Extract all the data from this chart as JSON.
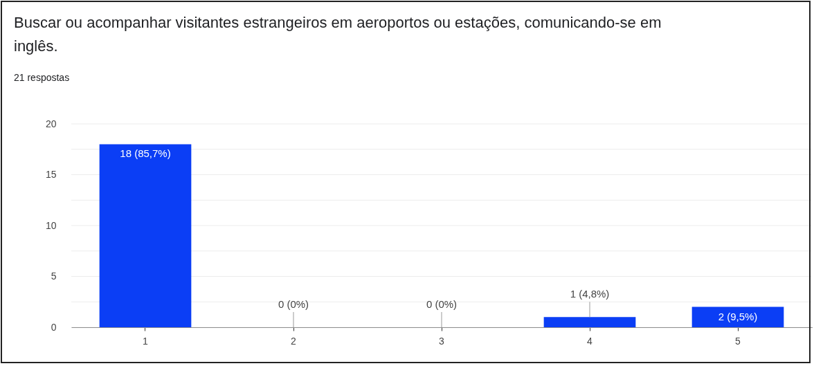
{
  "chart_data": {
    "type": "bar",
    "title": "Buscar ou acompanhar visitantes estrangeiros em aeroportos ou estações, comunicando-se em inglês.",
    "subtitle": "21 respostas",
    "categories": [
      "1",
      "2",
      "3",
      "4",
      "5"
    ],
    "values": [
      18,
      0,
      0,
      1,
      2
    ],
    "value_labels": [
      "18 (85,7%)",
      "0 (0%)",
      "0 (0%)",
      "1 (4,8%)",
      "2 (9,5%)"
    ],
    "color": "#0b3ef5",
    "ylim": [
      0,
      20
    ],
    "yticks": [
      0,
      {
        "value": 2.5,
        "label": null
      },
      5,
      {
        "value": 7.5,
        "label": null
      },
      10,
      {
        "value": 12.5,
        "label": null
      },
      15,
      {
        "value": 17.5,
        "label": null
      },
      20
    ],
    "grid": "y"
  }
}
